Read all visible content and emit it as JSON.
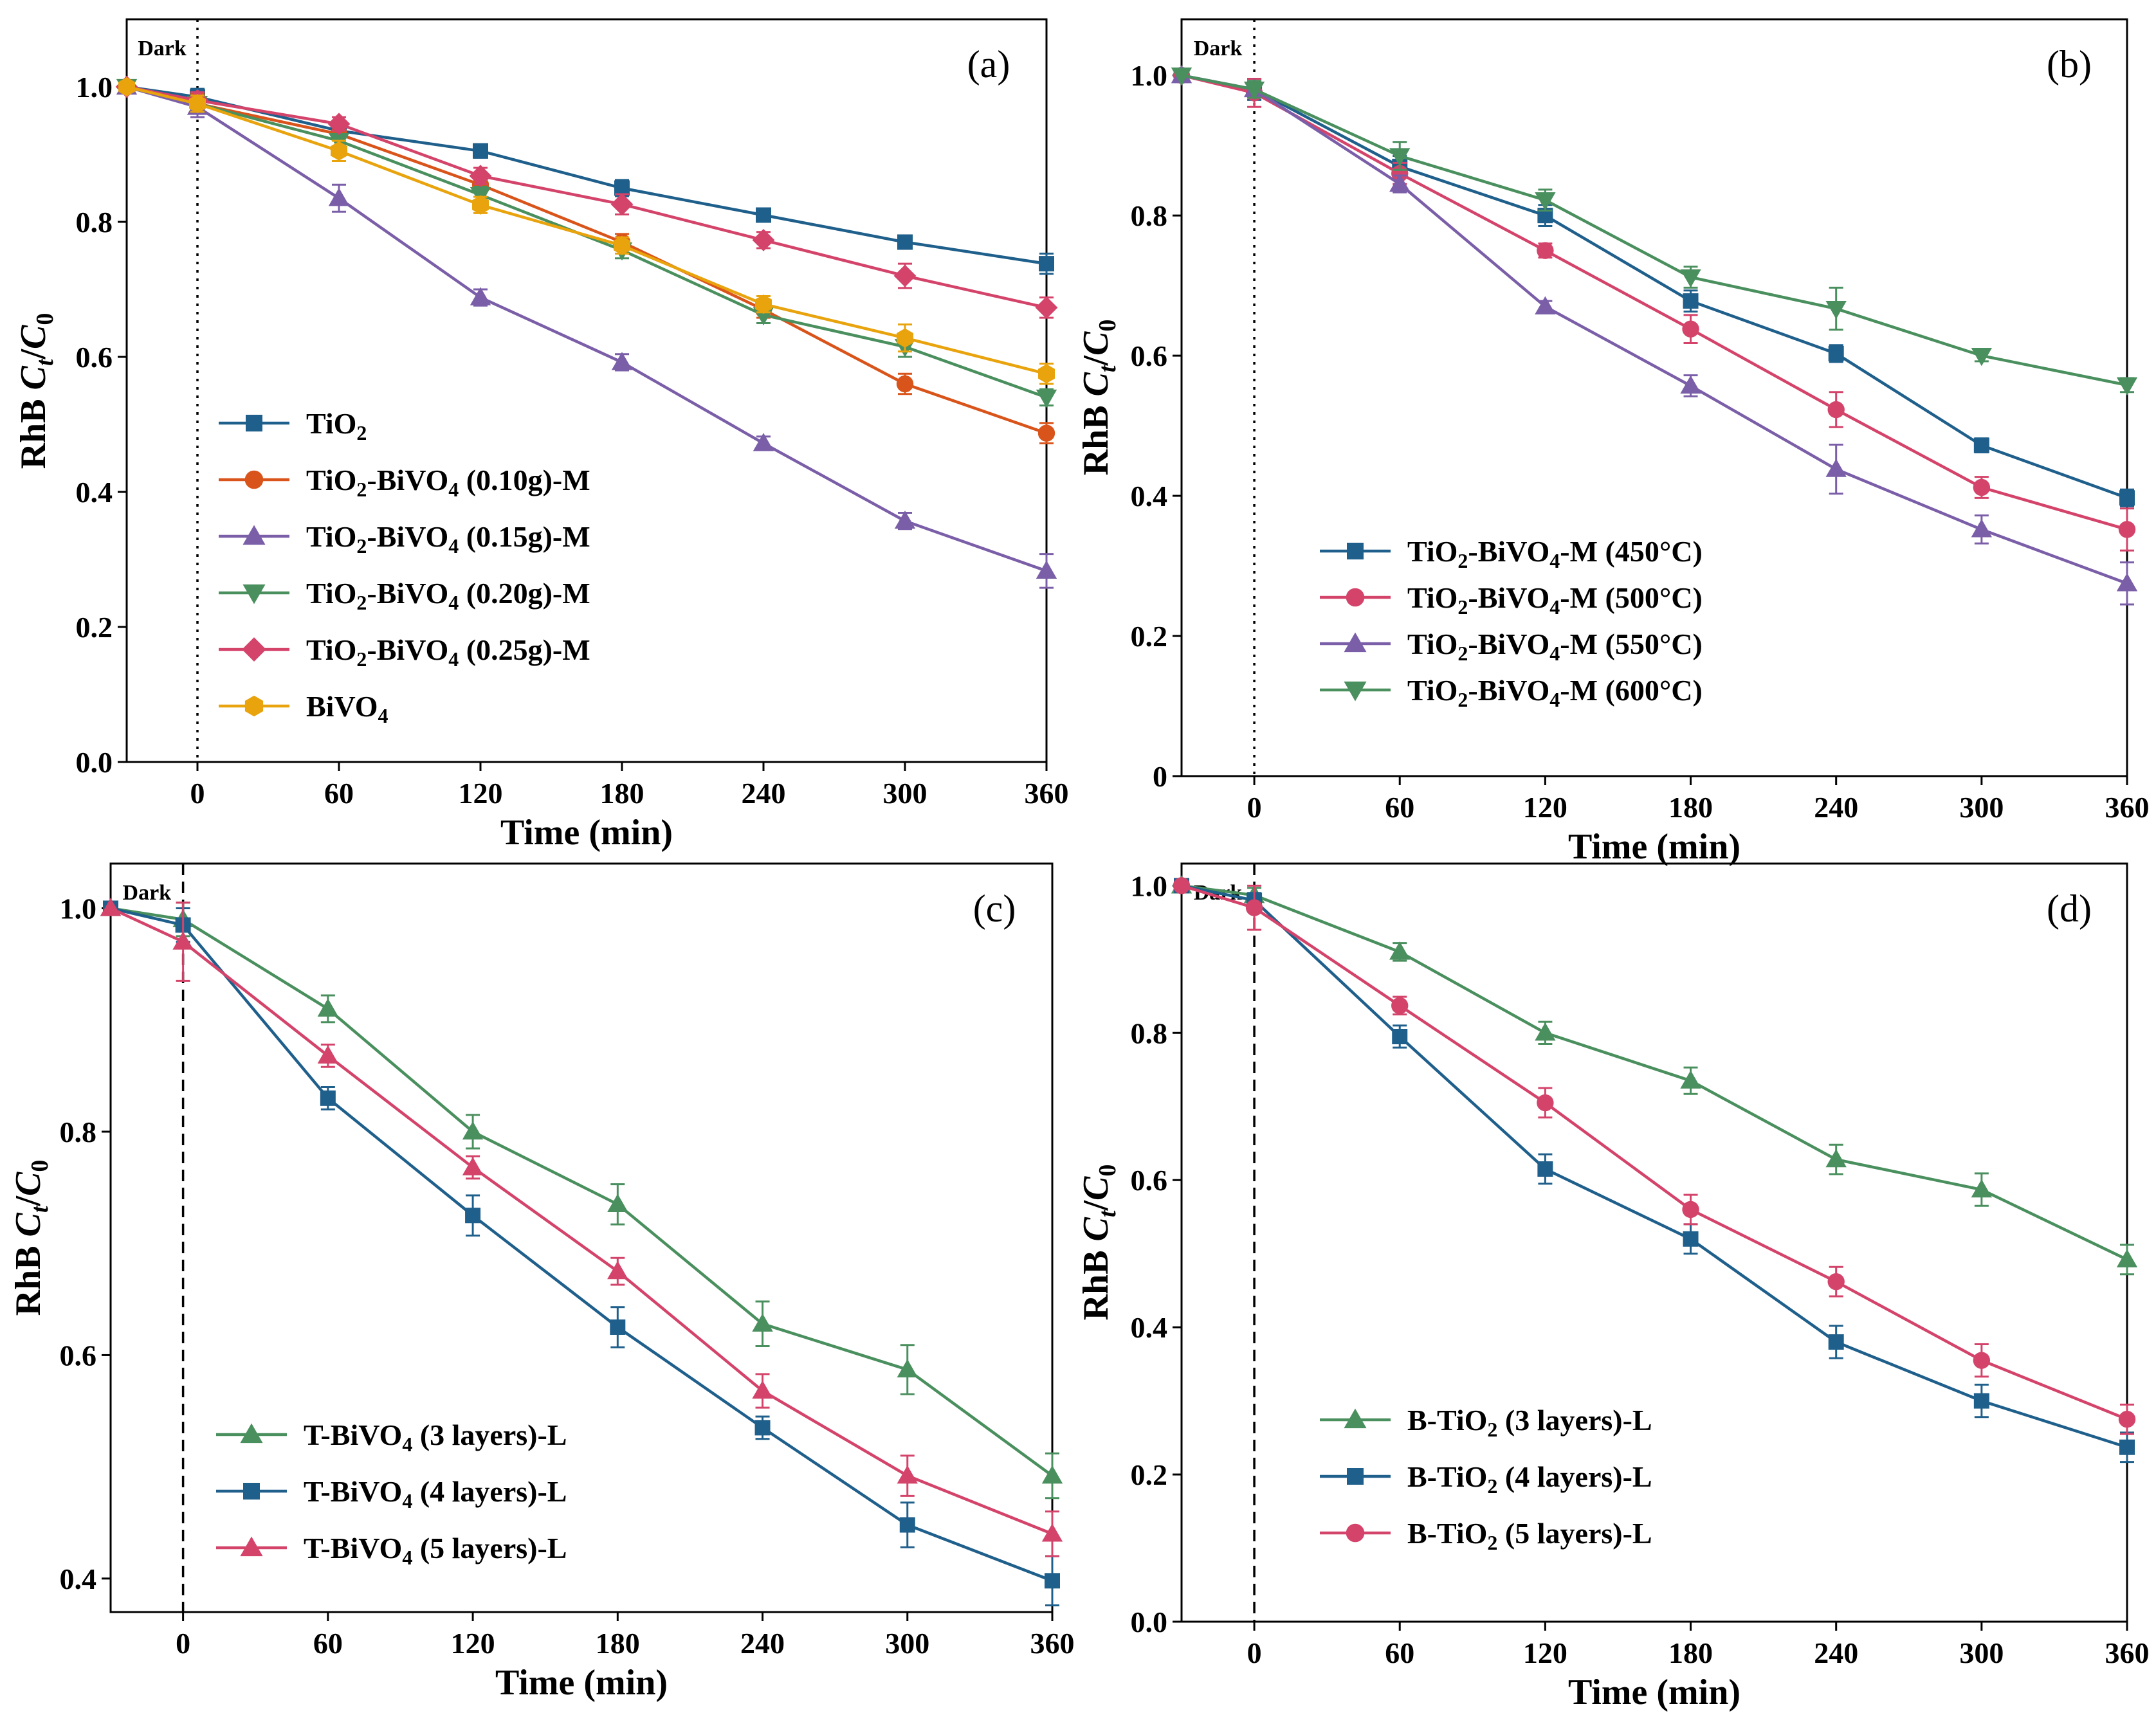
{
  "chart_data": [
    {
      "id": "a",
      "type": "line",
      "panel_label": "(a)",
      "dark_label": "Dark",
      "xlabel": "Time (min)",
      "ylabel": {
        "prefix": "RhB ",
        "c1": "C",
        "sub1": "t",
        "slash": "/",
        "c2": "C",
        "sub2": "0"
      },
      "xlim": [
        -30,
        360
      ],
      "ylim": [
        0,
        1.1
      ],
      "xticks": [
        0,
        60,
        120,
        180,
        240,
        300,
        360
      ],
      "yticks": [
        0,
        0.2,
        0.4,
        0.6,
        0.8,
        1.0
      ],
      "ytick_labels": [
        "0.0",
        "0.2",
        "0.4",
        "0.6",
        "0.8",
        "1.0"
      ],
      "dark_line_style": "dotted",
      "x": [
        -30,
        0,
        60,
        120,
        180,
        240,
        300,
        360
      ],
      "legend_position": "lower-left",
      "series": [
        {
          "name": "TiO2",
          "label": [
            "TiO",
            "2",
            ""
          ],
          "marker": "square",
          "color": "#1f5f8b",
          "values": [
            1.0,
            0.985,
            0.935,
            0.905,
            0.85,
            0.81,
            0.77,
            0.738
          ],
          "errors": [
            0,
            0.012,
            0.008,
            0.01,
            0.012,
            0.008,
            0.008,
            0.015
          ]
        },
        {
          "name": "TiO2-BiVO4 (0.10g)-M",
          "label": [
            "TiO",
            "2",
            "-BiVO",
            "4",
            " (0.10g)-M"
          ],
          "marker": "circle",
          "color": "#d9541a",
          "values": [
            1.0,
            0.975,
            0.93,
            0.855,
            0.77,
            0.67,
            0.56,
            0.487
          ],
          "errors": [
            0,
            0.015,
            0.01,
            0.01,
            0.012,
            0.012,
            0.015,
            0.015
          ]
        },
        {
          "name": "TiO2-BiVO4 (0.15g)-M",
          "label": [
            "TiO",
            "2",
            "-BiVO",
            "4",
            " (0.15g)-M"
          ],
          "marker": "triangle-up",
          "color": "#7b5ea8",
          "values": [
            1.0,
            0.97,
            0.835,
            0.688,
            0.592,
            0.472,
            0.357,
            0.283
          ],
          "errors": [
            0,
            0.015,
            0.02,
            0.012,
            0.012,
            0.01,
            0.012,
            0.025
          ]
        },
        {
          "name": "TiO2-BiVO4 (0.20g)-M",
          "label": [
            "TiO",
            "2",
            "-BiVO",
            "4",
            " (0.20g)-M"
          ],
          "marker": "triangle-down",
          "color": "#4a8f5e",
          "values": [
            1.0,
            0.975,
            0.92,
            0.84,
            0.758,
            0.662,
            0.615,
            0.54
          ],
          "errors": [
            0,
            0.012,
            0.01,
            0.012,
            0.012,
            0.012,
            0.015,
            0.012
          ]
        },
        {
          "name": "TiO2-BiVO4 (0.25g)-M",
          "label": [
            "TiO",
            "2",
            "-BiVO",
            "4",
            " (0.25g)-M"
          ],
          "marker": "diamond",
          "color": "#d4436a",
          "values": [
            1.0,
            0.98,
            0.945,
            0.868,
            0.826,
            0.773,
            0.72,
            0.673
          ],
          "errors": [
            0,
            0.012,
            0.01,
            0.012,
            0.015,
            0.012,
            0.018,
            0.015
          ]
        },
        {
          "name": "BiVO4",
          "label": [
            "BiVO",
            "4",
            ""
          ],
          "marker": "hexagon",
          "color": "#e8a30d",
          "values": [
            1.0,
            0.975,
            0.905,
            0.825,
            0.765,
            0.678,
            0.628,
            0.575
          ],
          "errors": [
            0,
            0.012,
            0.015,
            0.012,
            0.012,
            0.012,
            0.02,
            0.015
          ]
        }
      ]
    },
    {
      "id": "b",
      "type": "line",
      "panel_label": "(b)",
      "dark_label": "Dark",
      "xlabel": "Time (min)",
      "ylabel": {
        "prefix": "RhB ",
        "c1": "C",
        "sub1": "t",
        "slash": "/",
        "c2": "C",
        "sub2": "0"
      },
      "xlim": [
        -30,
        360
      ],
      "ylim": [
        0,
        1.08
      ],
      "xticks": [
        0,
        60,
        120,
        180,
        240,
        300,
        360
      ],
      "yticks": [
        0,
        0.2,
        0.4,
        0.6,
        0.8,
        1.0
      ],
      "ytick_labels": [
        "0",
        "0.2",
        "0.4",
        "0.6",
        "0.8",
        "1.0"
      ],
      "dark_line_style": "dotted",
      "x": [
        -30,
        0,
        60,
        120,
        180,
        240,
        300,
        360
      ],
      "legend_position": "lower-left",
      "series": [
        {
          "name": "TiO2-BiVO4-M (450°C)",
          "label": [
            "TiO",
            "2",
            "-BiVO",
            "4",
            "-M (450°C)"
          ],
          "marker": "square",
          "color": "#1f5f8b",
          "values": [
            1.0,
            0.98,
            0.87,
            0.8,
            0.678,
            0.603,
            0.472,
            0.397
          ],
          "errors": [
            0,
            0.015,
            0.015,
            0.015,
            0.015,
            0.012,
            0.01,
            0.012
          ]
        },
        {
          "name": "TiO2-BiVO4-M (500°C)",
          "label": [
            "TiO",
            "2",
            "-BiVO",
            "4",
            "-M (500°C)"
          ],
          "marker": "circle",
          "color": "#d4436a",
          "values": [
            1.0,
            0.975,
            0.86,
            0.75,
            0.638,
            0.523,
            0.412,
            0.352
          ],
          "errors": [
            0,
            0.02,
            0.015,
            0.01,
            0.02,
            0.025,
            0.015,
            0.03
          ]
        },
        {
          "name": "TiO2-BiVO4-M (550°C)",
          "label": [
            "TiO",
            "2",
            "-BiVO",
            "4",
            "-M (550°C)"
          ],
          "marker": "triangle-up",
          "color": "#7b5ea8",
          "values": [
            1.0,
            0.98,
            0.845,
            0.67,
            0.557,
            0.438,
            0.352,
            0.275
          ],
          "errors": [
            0,
            0.012,
            0.012,
            0.008,
            0.015,
            0.035,
            0.02,
            0.03
          ]
        },
        {
          "name": "TiO2-BiVO4-M (600°C)",
          "label": [
            "TiO",
            "2",
            "-BiVO",
            "4",
            "-M (600°C)"
          ],
          "marker": "triangle-down",
          "color": "#4a8f5e",
          "values": [
            1.0,
            0.98,
            0.885,
            0.822,
            0.712,
            0.667,
            0.6,
            0.558
          ],
          "errors": [
            0,
            0.012,
            0.02,
            0.015,
            0.015,
            0.03,
            0.008,
            0.01
          ]
        }
      ]
    },
    {
      "id": "c",
      "type": "line",
      "panel_label": "(c)",
      "dark_label": "Dark",
      "xlabel": "Time (min)",
      "ylabel": {
        "prefix": "RhB ",
        "c1": "C",
        "sub1": "t",
        "slash": "/",
        "c2": "C",
        "sub2": "0"
      },
      "xlim": [
        -30,
        360
      ],
      "ylim": [
        0.37,
        1.04
      ],
      "xticks": [
        0,
        60,
        120,
        180,
        240,
        300,
        360
      ],
      "yticks": [
        0.4,
        0.6,
        0.8,
        1.0
      ],
      "ytick_labels": [
        "0.4",
        "0.6",
        "0.8",
        "1.0"
      ],
      "dark_line_style": "dashed",
      "x": [
        -30,
        0,
        60,
        120,
        180,
        240,
        300,
        360
      ],
      "legend_position": "lower-left",
      "series": [
        {
          "name": "T-BiVO4 (3 layers)-L",
          "label": [
            "T-BiVO",
            "4",
            " (3 layers)-L"
          ],
          "marker": "triangle-up",
          "color": "#4a8f5e",
          "values": [
            1.0,
            0.99,
            0.91,
            0.8,
            0.735,
            0.628,
            0.587,
            0.492
          ],
          "errors": [
            0,
            0.015,
            0.012,
            0.015,
            0.018,
            0.02,
            0.022,
            0.02
          ]
        },
        {
          "name": "T-BiVO4 (4 layers)-L",
          "label": [
            "T-BiVO",
            "4",
            " (4 layers)-L"
          ],
          "marker": "square",
          "color": "#1f5f8b",
          "values": [
            1.0,
            0.985,
            0.83,
            0.725,
            0.625,
            0.535,
            0.448,
            0.398
          ],
          "errors": [
            0,
            0.015,
            0.01,
            0.018,
            0.018,
            0.01,
            0.02,
            0.022
          ]
        },
        {
          "name": "T-BiVO4 (5 layers)-L",
          "label": [
            "T-BiVO",
            "4",
            " (5 layers)-L"
          ],
          "marker": "triangle-up",
          "color": "#d4436a",
          "values": [
            1.0,
            0.97,
            0.868,
            0.768,
            0.675,
            0.568,
            0.492,
            0.44
          ],
          "errors": [
            0,
            0.035,
            0.01,
            0.01,
            0.012,
            0.015,
            0.018,
            0.02
          ]
        }
      ]
    },
    {
      "id": "d",
      "type": "line",
      "panel_label": "(d)",
      "dark_label": "Dark",
      "xlabel": "Time (min)",
      "ylabel": {
        "prefix": "RhB ",
        "c1": "C",
        "sub1": "t",
        "slash": "/",
        "c2": "C",
        "sub2": "0"
      },
      "xlim": [
        -30,
        360
      ],
      "ylim": [
        0,
        1.03
      ],
      "xticks": [
        0,
        60,
        120,
        180,
        240,
        300,
        360
      ],
      "yticks": [
        0,
        0.2,
        0.4,
        0.6,
        0.8,
        1.0
      ],
      "ytick_labels": [
        "0.0",
        "0.2",
        "0.4",
        "0.6",
        "0.8",
        "1.0"
      ],
      "dark_line_style": "dashed",
      "x": [
        -30,
        0,
        60,
        120,
        180,
        240,
        300,
        360
      ],
      "legend_position": "lower-left",
      "series": [
        {
          "name": "B-TiO2 (3 layers)-L",
          "label": [
            "B-TiO",
            "2",
            " (3 layers)-L"
          ],
          "marker": "triangle-up",
          "color": "#4a8f5e",
          "values": [
            1.0,
            0.987,
            0.91,
            0.8,
            0.735,
            0.628,
            0.587,
            0.492
          ],
          "errors": [
            0,
            0.01,
            0.012,
            0.015,
            0.018,
            0.02,
            0.022,
            0.02
          ]
        },
        {
          "name": "B-TiO2 (4 layers)-L",
          "label": [
            "B-TiO",
            "2",
            " (4 layers)-L"
          ],
          "marker": "square",
          "color": "#1f5f8b",
          "values": [
            1.0,
            0.98,
            0.795,
            0.615,
            0.52,
            0.38,
            0.3,
            0.237
          ],
          "errors": [
            0,
            0.01,
            0.015,
            0.02,
            0.02,
            0.022,
            0.022,
            0.02
          ]
        },
        {
          "name": "B-TiO2 (5 layers)-L",
          "label": [
            "B-TiO",
            "2",
            " (5 layers)-L"
          ],
          "marker": "circle",
          "color": "#d4436a",
          "values": [
            1.0,
            0.97,
            0.837,
            0.705,
            0.56,
            0.462,
            0.355,
            0.275
          ],
          "errors": [
            0,
            0.03,
            0.012,
            0.02,
            0.02,
            0.02,
            0.022,
            0.02
          ]
        }
      ]
    }
  ]
}
